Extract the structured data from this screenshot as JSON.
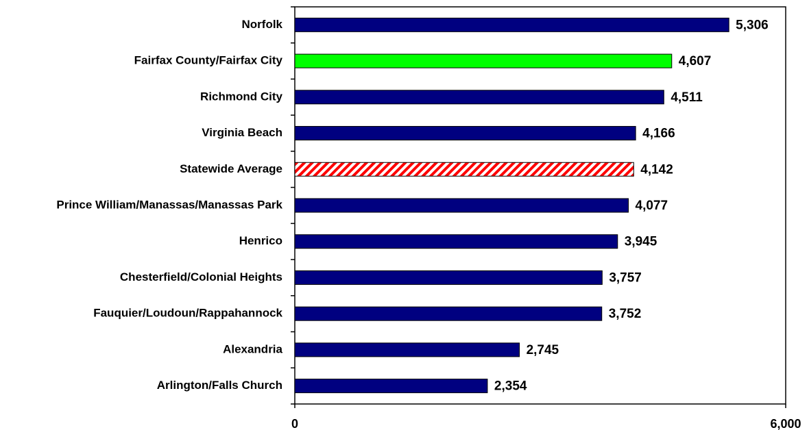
{
  "chart_data": {
    "type": "bar",
    "orientation": "horizontal",
    "categories": [
      "Norfolk",
      "Fairfax County/Fairfax City",
      "Richmond City",
      "Virginia Beach",
      "Statewide Average",
      "Prince William/Manassas/Manassas Park",
      "Henrico",
      "Chesterfield/Colonial Heights",
      "Fauquier/Loudoun/Rappahannock",
      "Alexandria",
      "Arlington/Falls Church"
    ],
    "values": [
      5306,
      4607,
      4511,
      4166,
      4142,
      4077,
      3945,
      3757,
      3752,
      2745,
      2354
    ],
    "value_labels": [
      "5,306",
      "4,607",
      "4,511",
      "4,166",
      "4,142",
      "4,077",
      "3,945",
      "3,757",
      "3,752",
      "2,745",
      "2,354"
    ],
    "colors": [
      "#000080",
      "#00ff00",
      "#000080",
      "#000080",
      "#ff0000",
      "#000080",
      "#000080",
      "#000080",
      "#000080",
      "#000080",
      "#000080"
    ],
    "hatched": [
      false,
      false,
      false,
      false,
      true,
      false,
      false,
      false,
      false,
      false,
      false
    ],
    "xlim": [
      0,
      6000
    ],
    "xticks": [
      0,
      {
        "value": 6000,
        "label": "6,000"
      }
    ],
    "grid": false
  }
}
